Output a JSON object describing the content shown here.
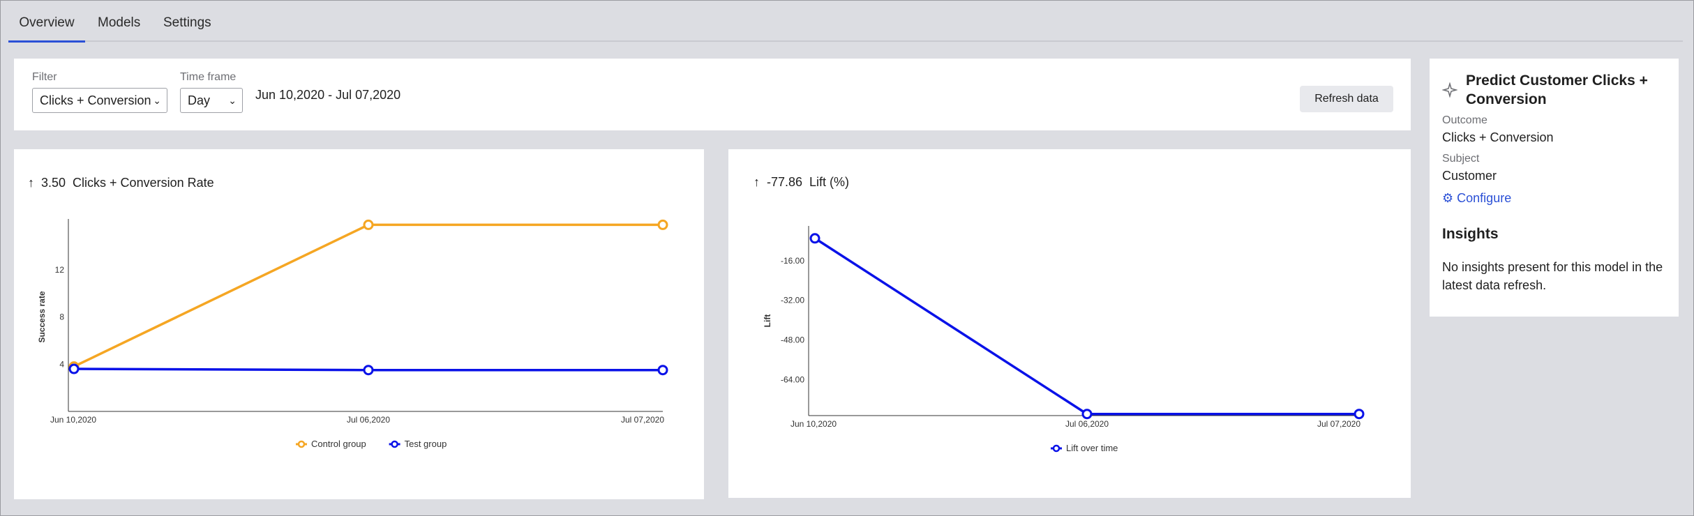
{
  "tabs": [
    {
      "label": "Overview",
      "active": true
    },
    {
      "label": "Models",
      "active": false
    },
    {
      "label": "Settings",
      "active": false
    }
  ],
  "filters": {
    "filter_label": "Filter",
    "filter_value": "Clicks + Conversion",
    "timeframe_label": "Time frame",
    "timeframe_value": "Day",
    "date_range": "Jun 10,2020 - Jul 07,2020",
    "refresh_label": "Refresh data"
  },
  "left_chart": {
    "metric_value": "3.50",
    "metric_label": "Clicks + Conversion Rate"
  },
  "right_chart": {
    "metric_value": "-77.86",
    "metric_label": "Lift (%)"
  },
  "sidebar": {
    "title": "Predict Customer Clicks + Conversion",
    "outcome_label": "Outcome",
    "outcome_value": "Clicks + Conversion",
    "subject_label": "Subject",
    "subject_value": "Customer",
    "configure_label": "Configure",
    "insights_title": "Insights",
    "insights_text": "No insights present for this model in the latest data refresh."
  },
  "colors": {
    "accent": "#2b50d6",
    "control": "#f5a623",
    "test": "#0a12e8"
  },
  "icons": {
    "up_arrow": "arrow-up-icon",
    "sparkle": "sparkle-icon",
    "gear": "gear-icon",
    "chevron": "chevron-down-icon"
  },
  "chart_data": [
    {
      "type": "line",
      "title": "",
      "xlabel": "",
      "ylabel": "Success rate",
      "categories": [
        "Jun 10,2020",
        "Jul 06,2020",
        "Jul 07,2020"
      ],
      "yticks": [
        4,
        8,
        12
      ],
      "ylim": [
        0,
        16
      ],
      "series": [
        {
          "name": "Control group",
          "values": [
            3.8,
            15.8,
            15.8
          ],
          "color": "#f5a623"
        },
        {
          "name": "Test group",
          "values": [
            3.6,
            3.5,
            3.5
          ],
          "color": "#0a12e8"
        }
      ],
      "legend": "bottom-center",
      "grid": false
    },
    {
      "type": "line",
      "title": "",
      "xlabel": "",
      "ylabel": "Lift",
      "categories": [
        "Jun 10,2020",
        "Jul 06,2020",
        "Jul 07,2020"
      ],
      "yticks": [
        "-16.00",
        "-32.00",
        "-48.00",
        "-64.00"
      ],
      "ylim": [
        -78.5,
        -2
      ],
      "series": [
        {
          "name": "Lift over time",
          "values": [
            -7.0,
            -77.86,
            -77.86
          ],
          "color": "#0a12e8"
        }
      ],
      "legend": "bottom-center",
      "grid": false
    }
  ]
}
